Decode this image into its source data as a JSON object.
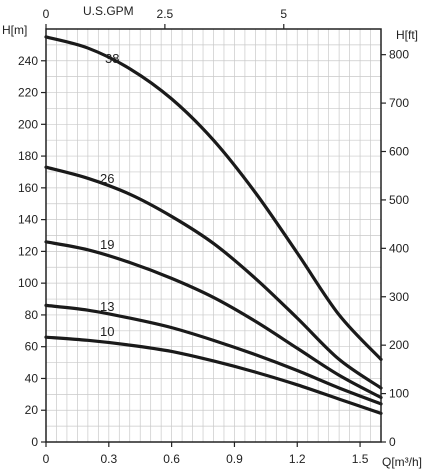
{
  "chart_data": {
    "type": "line",
    "title": "",
    "left_axis": {
      "label": "H[m]",
      "range": [
        0,
        260
      ],
      "ticks": [
        0,
        20,
        40,
        60,
        80,
        100,
        120,
        140,
        160,
        180,
        200,
        220,
        240
      ],
      "tick_labels": [
        "0",
        "20",
        "40",
        "60",
        "80",
        "100",
        "120",
        "140",
        "160",
        "180",
        "200",
        "220",
        "240"
      ]
    },
    "right_axis": {
      "label": "H[ft]",
      "ticks": [
        0,
        100,
        200,
        300,
        400,
        500,
        600,
        700,
        800
      ],
      "tick_labels": [
        "0",
        "100",
        "200",
        "300",
        "400",
        "500",
        "600",
        "700",
        "800"
      ]
    },
    "bottom_axis": {
      "label": "Q[m³/h]",
      "range": [
        0,
        1.6
      ],
      "ticks": [
        0,
        0.3,
        0.6,
        0.9,
        1.2,
        1.5
      ],
      "tick_labels": [
        "0",
        "0.3",
        "0.6",
        "0.9",
        "1.2",
        "1.5"
      ]
    },
    "top_axis": {
      "label": "U.S.GPM",
      "ticks": [
        0,
        2.5,
        5
      ],
      "tick_labels": [
        "0",
        "2.5",
        "5"
      ]
    },
    "grid": true,
    "series": [
      {
        "name": "38",
        "x": [
          0,
          0.2,
          0.4,
          0.6,
          0.8,
          1.0,
          1.2,
          1.4,
          1.6
        ],
        "y": [
          255,
          248,
          235,
          216,
          190,
          157,
          119,
          80,
          52
        ]
      },
      {
        "name": "26",
        "x": [
          0,
          0.2,
          0.4,
          0.6,
          0.8,
          1.0,
          1.2,
          1.4,
          1.6
        ],
        "y": [
          173,
          166,
          156,
          142,
          125,
          103,
          78,
          52,
          34
        ]
      },
      {
        "name": "19",
        "x": [
          0,
          0.2,
          0.4,
          0.6,
          0.8,
          1.0,
          1.2,
          1.4,
          1.6
        ],
        "y": [
          126,
          121,
          113,
          103,
          91,
          76,
          59,
          42,
          28
        ]
      },
      {
        "name": "13",
        "x": [
          0,
          0.2,
          0.4,
          0.6,
          0.8,
          1.0,
          1.2,
          1.4,
          1.6
        ],
        "y": [
          86,
          83,
          78,
          72,
          64,
          55,
          45,
          34,
          24
        ]
      },
      {
        "name": "10",
        "x": [
          0,
          0.2,
          0.4,
          0.6,
          0.8,
          1.0,
          1.2,
          1.4,
          1.6
        ],
        "y": [
          66,
          64,
          61,
          57,
          51,
          44,
          36,
          27,
          18
        ]
      }
    ],
    "colors": {
      "curve": "#1a1a1a",
      "grid": "#c9c9c9",
      "frame": "#222222"
    }
  }
}
